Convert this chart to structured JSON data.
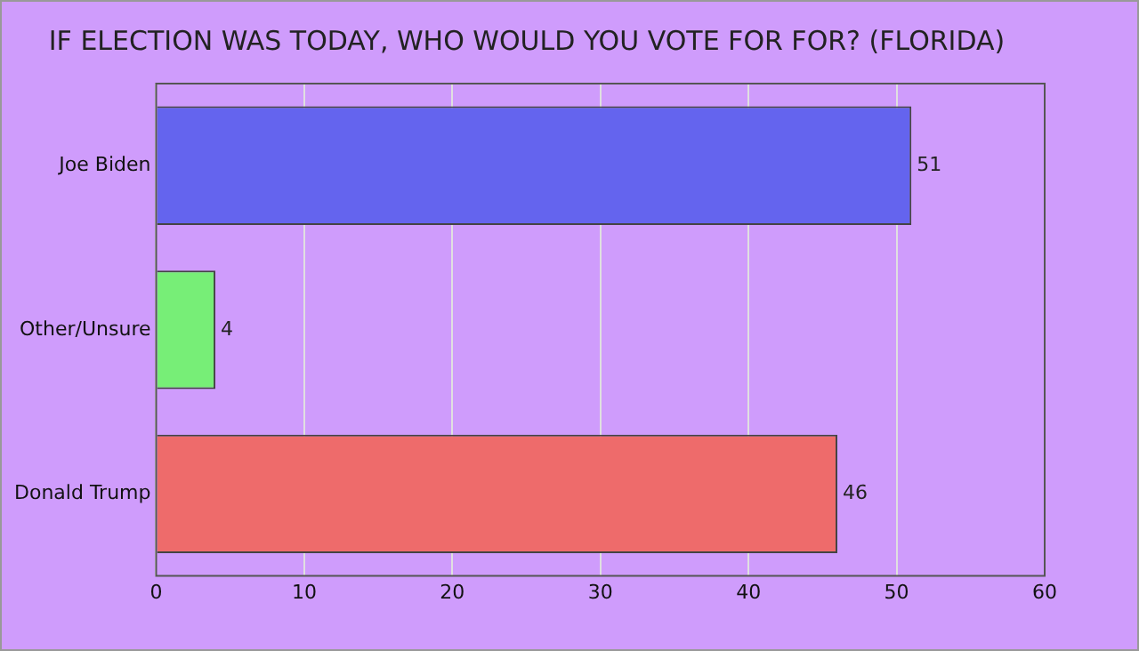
{
  "chart_data": {
    "type": "bar",
    "orientation": "horizontal",
    "title": "IF ELECTION WAS TODAY, WHO WOULD YOU VOTE FOR FOR? (FLORIDA)",
    "categories": [
      "Joe Biden",
      "Other/Unsure",
      "Donald Trump"
    ],
    "values": [
      51,
      4,
      46
    ],
    "colors": [
      "#6464ee",
      "#77ee77",
      "#ee6b6b"
    ],
    "xlim": [
      0,
      60
    ],
    "xticks": [
      0,
      10,
      20,
      30,
      40,
      50,
      60
    ],
    "grid": "x",
    "data_labels": true,
    "legend": false
  }
}
